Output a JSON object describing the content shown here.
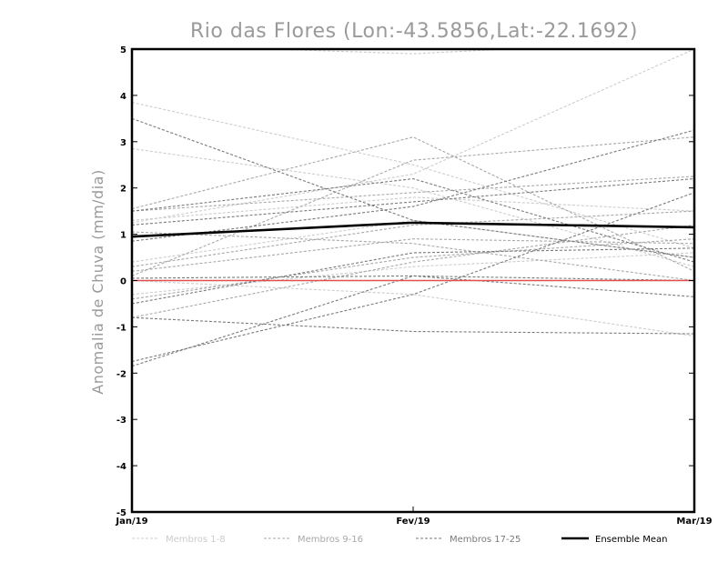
{
  "chart_data": {
    "type": "line",
    "title": "Rio das Flores (Lon:-43.5856,Lat:-22.1692)",
    "ylabel": "Anomalia de Chuva (mm/dia)",
    "xlabel": "",
    "categories": [
      "Jan/19",
      "Fev/19",
      "Mar/19"
    ],
    "ylim": [
      -5,
      5
    ],
    "yticks": [
      "5",
      "4",
      "3",
      "2",
      "1",
      "0",
      "-1",
      "-2",
      "-3",
      "-4",
      "-5"
    ],
    "ytick_values": [
      5,
      4,
      3,
      2,
      1,
      0,
      -1,
      -2,
      -3,
      -4,
      -5
    ],
    "grid": false,
    "legend_position": "bottom",
    "zero_line_color": "#e05050",
    "legend": [
      {
        "label": "Membros 1-8",
        "color": "#cccccc",
        "dash": true
      },
      {
        "label": "Membros 9-16",
        "color": "#a8a8a8",
        "dash": true
      },
      {
        "label": "Membros 17-25",
        "color": "#7a7a7a",
        "dash": true
      },
      {
        "label": "Ensemble Mean",
        "color": "#000000",
        "dash": false
      }
    ],
    "groups": [
      {
        "color": "#cccccc",
        "members": [
          [
            5.1,
            4.9,
            5.2
          ],
          [
            3.85,
            2.5,
            0.7
          ],
          [
            2.85,
            2.0,
            0.3
          ],
          [
            1.25,
            2.3,
            5.0
          ],
          [
            1.3,
            1.8,
            1.5
          ],
          [
            0.0,
            -0.3,
            -1.2
          ],
          [
            -0.3,
            0.3,
            0.6
          ],
          [
            0.4,
            1.3,
            0.5
          ]
        ]
      },
      {
        "color": "#a8a8a8",
        "members": [
          [
            1.55,
            3.1,
            0.2
          ],
          [
            1.5,
            1.9,
            2.25
          ],
          [
            1.05,
            0.8,
            0.0
          ],
          [
            0.2,
            0.9,
            0.8
          ],
          [
            0.3,
            1.2,
            1.5
          ],
          [
            -0.4,
            0.5,
            0.9
          ],
          [
            -0.8,
            0.4,
            1.2
          ],
          [
            0.1,
            2.6,
            3.1
          ]
        ]
      },
      {
        "color": "#7a7a7a",
        "members": [
          [
            3.5,
            1.3,
            0.5
          ],
          [
            1.5,
            2.2,
            0.4
          ],
          [
            1.2,
            1.7,
            2.2
          ],
          [
            0.85,
            1.6,
            3.25
          ],
          [
            0.05,
            0.1,
            -0.35
          ],
          [
            -0.5,
            0.6,
            0.7
          ],
          [
            -0.8,
            -1.1,
            -1.15
          ],
          [
            -1.75,
            -0.3,
            1.9
          ],
          [
            -1.85,
            0.1,
            0.0
          ]
        ]
      }
    ],
    "series": [
      {
        "name": "Ensemble Mean",
        "values": [
          0.95,
          1.25,
          1.15
        ]
      }
    ]
  }
}
